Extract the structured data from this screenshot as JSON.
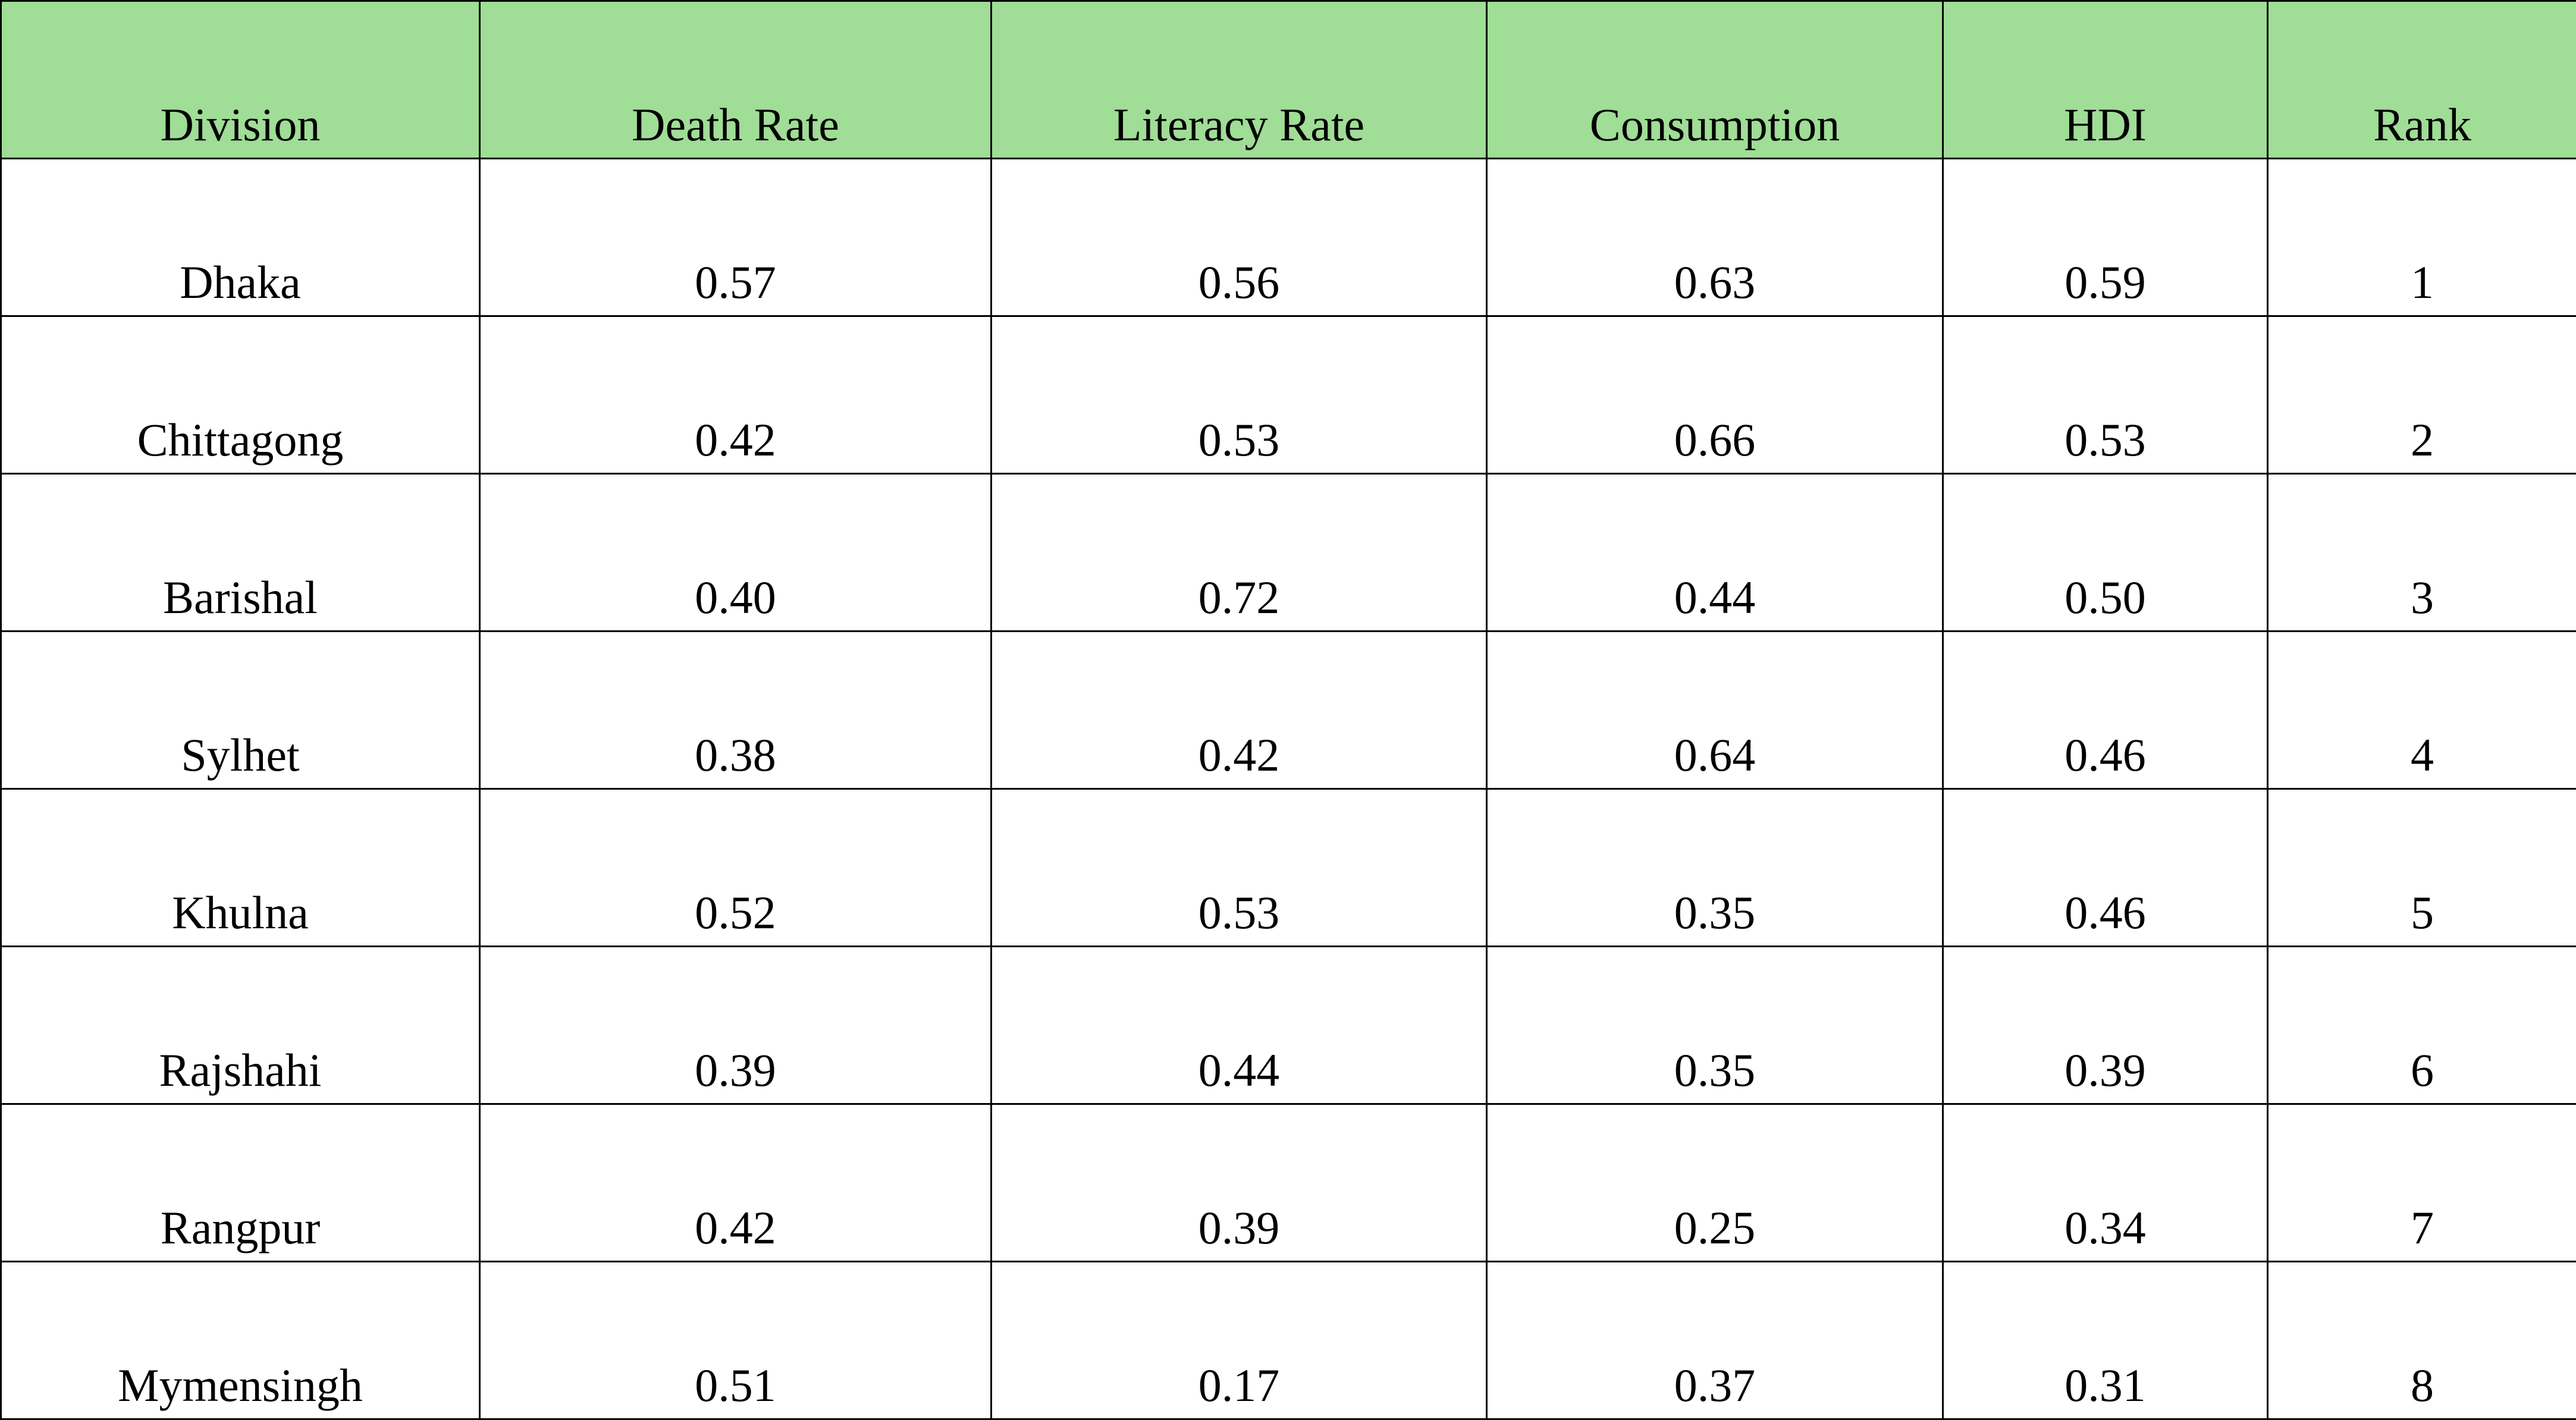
{
  "table": {
    "headers": [
      "Division",
      "Death Rate",
      "Literacy Rate",
      "Consumption",
      "HDI",
      "Rank"
    ],
    "header_color": "#a0dd96",
    "rows": [
      [
        "Dhaka",
        "0.57",
        "0.56",
        "0.63",
        "0.59",
        "1"
      ],
      [
        "Chittagong",
        "0.42",
        "0.53",
        "0.66",
        "0.53",
        "2"
      ],
      [
        "Barishal",
        "0.40",
        "0.72",
        "0.44",
        "0.50",
        "3"
      ],
      [
        "Sylhet",
        "0.38",
        "0.42",
        "0.64",
        "0.46",
        "4"
      ],
      [
        "Khulna",
        "0.52",
        "0.53",
        "0.35",
        "0.46",
        "5"
      ],
      [
        "Rajshahi",
        "0.39",
        "0.44",
        "0.35",
        "0.39",
        "6"
      ],
      [
        "Rangpur",
        "0.42",
        "0.39",
        "0.25",
        "0.34",
        "7"
      ],
      [
        "Mymensingh",
        "0.51",
        "0.17",
        "0.37",
        "0.31",
        "8"
      ]
    ]
  }
}
